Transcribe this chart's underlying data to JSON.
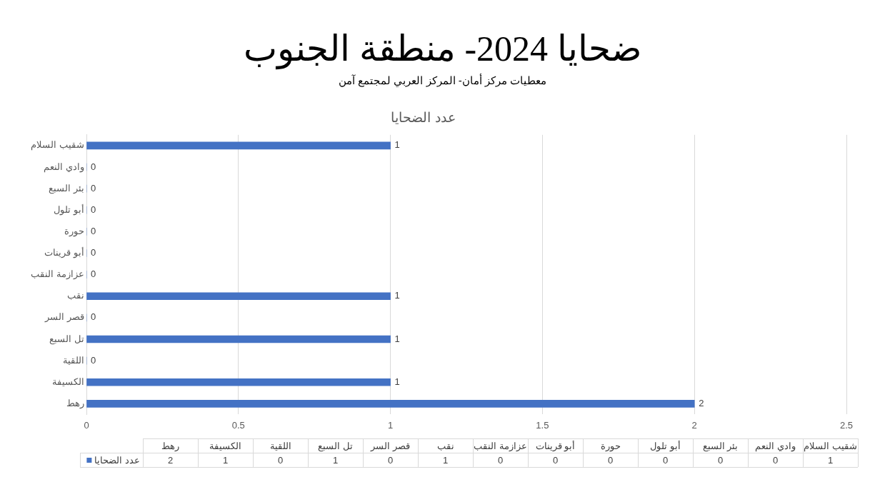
{
  "chart_data": {
    "type": "bar",
    "orientation": "horizontal",
    "title": "ضحايا 2024- منطقة الجنوب",
    "subtitle": "معطيات مركز أمان- المركز العربي لمجتمع آمن",
    "annotations": [
      "عدد الضحايا",
      "2",
      "1",
      "0",
      "1",
      "0",
      "1",
      "0",
      "0",
      "0",
      "0",
      "0",
      "0",
      "1"
    ],
    "categories": [
      "شقيب السلام",
      "وادي النعم",
      "بئر السبع",
      "أبو تلول",
      "حورة",
      "أبو قرينات",
      "عزازمة النقب",
      "نقب",
      "قصر السر",
      "تل السبع",
      "اللقية",
      "الكسيفة",
      "رهط"
    ],
    "series": [
      {
        "name": "عدد الضحايا",
        "color": "#4472c4",
        "values": [
          1,
          0,
          0,
          0,
          0,
          0,
          0,
          1,
          0,
          1,
          0,
          1,
          2
        ]
      }
    ],
    "xlim": [
      0,
      2.5
    ],
    "xticks": [
      0,
      0.5,
      1,
      1.5,
      2,
      2.5
    ],
    "grid": "x",
    "legend": "bottom",
    "data_labels": true
  }
}
